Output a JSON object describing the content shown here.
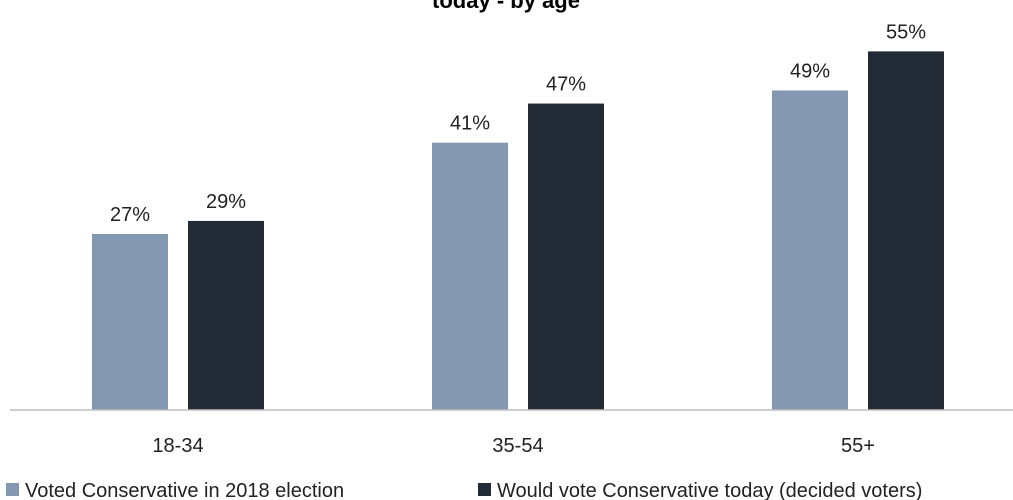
{
  "chart_data": {
    "type": "bar",
    "title": "today - by age",
    "categories": [
      "18-34",
      "35-54",
      "55+"
    ],
    "series": [
      {
        "name": "Voted Conservative in 2018 election",
        "values": [
          27,
          41,
          49
        ],
        "labels": [
          "27%",
          "41%",
          "49%"
        ],
        "color": "#8497B0"
      },
      {
        "name": "Would vote Conservative today (decided voters)",
        "values": [
          29,
          47,
          55
        ],
        "labels": [
          "29%",
          "47%",
          "55%"
        ],
        "color": "#222A35"
      }
    ],
    "ylim": [
      0,
      60
    ],
    "grid": false,
    "legend_position": "bottom",
    "axis_color": "#BFBFBF"
  }
}
